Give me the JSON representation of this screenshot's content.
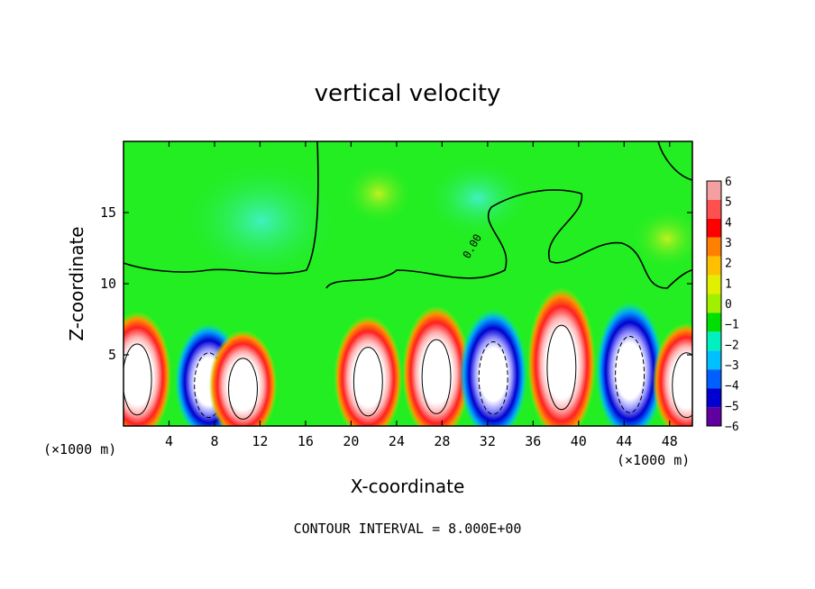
{
  "chart_data": {
    "type": "heatmap",
    "title": "vertical velocity",
    "xlabel": "X-coordinate",
    "ylabel": "Z-coordinate",
    "x_unit_left": "(×1000 m)",
    "x_unit_right": "(×1000 m)",
    "xlim": [
      0,
      50
    ],
    "ylim": [
      0,
      20
    ],
    "x_ticks": [
      4,
      8,
      12,
      16,
      20,
      24,
      28,
      32,
      36,
      40,
      44,
      48
    ],
    "y_ticks": [
      5,
      10,
      15
    ],
    "colorbar": {
      "labels": [
        "6",
        "5",
        "4",
        "3",
        "2",
        "1",
        "0",
        "−1",
        "−2",
        "−3",
        "−4",
        "−5",
        "−6"
      ],
      "levels": [
        6,
        5,
        4,
        3,
        2,
        1,
        0,
        -1,
        -2,
        -3,
        -4,
        -5,
        -6
      ],
      "colors": [
        "#f5a0a0",
        "#ff5050",
        "#ff0000",
        "#ff8000",
        "#ffc000",
        "#e0f000",
        "#a0f000",
        "#00e000",
        "#00f0c0",
        "#00c0ff",
        "#0060ff",
        "#0000d0",
        "#6000a0"
      ]
    },
    "contour_interval_text": "CONTOUR INTERVAL = 8.000E+00",
    "contour_label": "0.00",
    "background_color": "#22ee22",
    "positive_color": "#ff0000",
    "negative_color": "#0000dd",
    "core_color": "#ffffff",
    "cells": [
      {
        "x": 1.2,
        "sign": "positive",
        "top": 7.8
      },
      {
        "x": 7.5,
        "sign": "negative",
        "top": 7.0
      },
      {
        "x": 10.5,
        "sign": "positive",
        "top": 6.5
      },
      {
        "x": 21.5,
        "sign": "positive",
        "top": 7.5
      },
      {
        "x": 27.5,
        "sign": "positive",
        "top": 8.2
      },
      {
        "x": 32.5,
        "sign": "negative",
        "top": 8.0
      },
      {
        "x": 38.5,
        "sign": "positive",
        "top": 9.5
      },
      {
        "x": 44.5,
        "sign": "negative",
        "top": 8.5
      },
      {
        "x": 49.5,
        "sign": "positive",
        "top": 7.0
      }
    ]
  }
}
